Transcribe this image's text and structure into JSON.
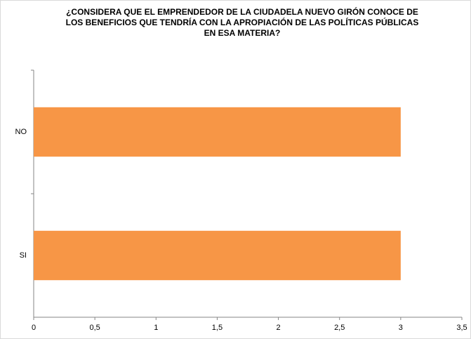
{
  "chart_data": {
    "type": "hbar",
    "title": [
      "¿CONSIDERA QUE EL EMPRENDEDOR  DE LA CIUDADELA NUEVO GIRÓN CONOCE DE",
      "LOS BENEFICIOS  QUE TENDRÍA CON LA APROPIACIÓN DE LAS POLÍTICAS PÚBLICAS",
      "EN ESA MATERIA?"
    ],
    "categories": [
      "NO",
      "SI"
    ],
    "values": [
      3,
      3
    ],
    "color": "#f79646",
    "xlim": [
      0,
      3.5
    ],
    "xticks": [
      0,
      {
        "value": 0.5,
        "label": "0,5"
      },
      1,
      {
        "value": 1.5,
        "label": "1,5"
      },
      2,
      {
        "value": 2.5,
        "label": "2,5"
      },
      3,
      {
        "value": 3.5,
        "label": "3,5"
      }
    ],
    "grid": false
  }
}
